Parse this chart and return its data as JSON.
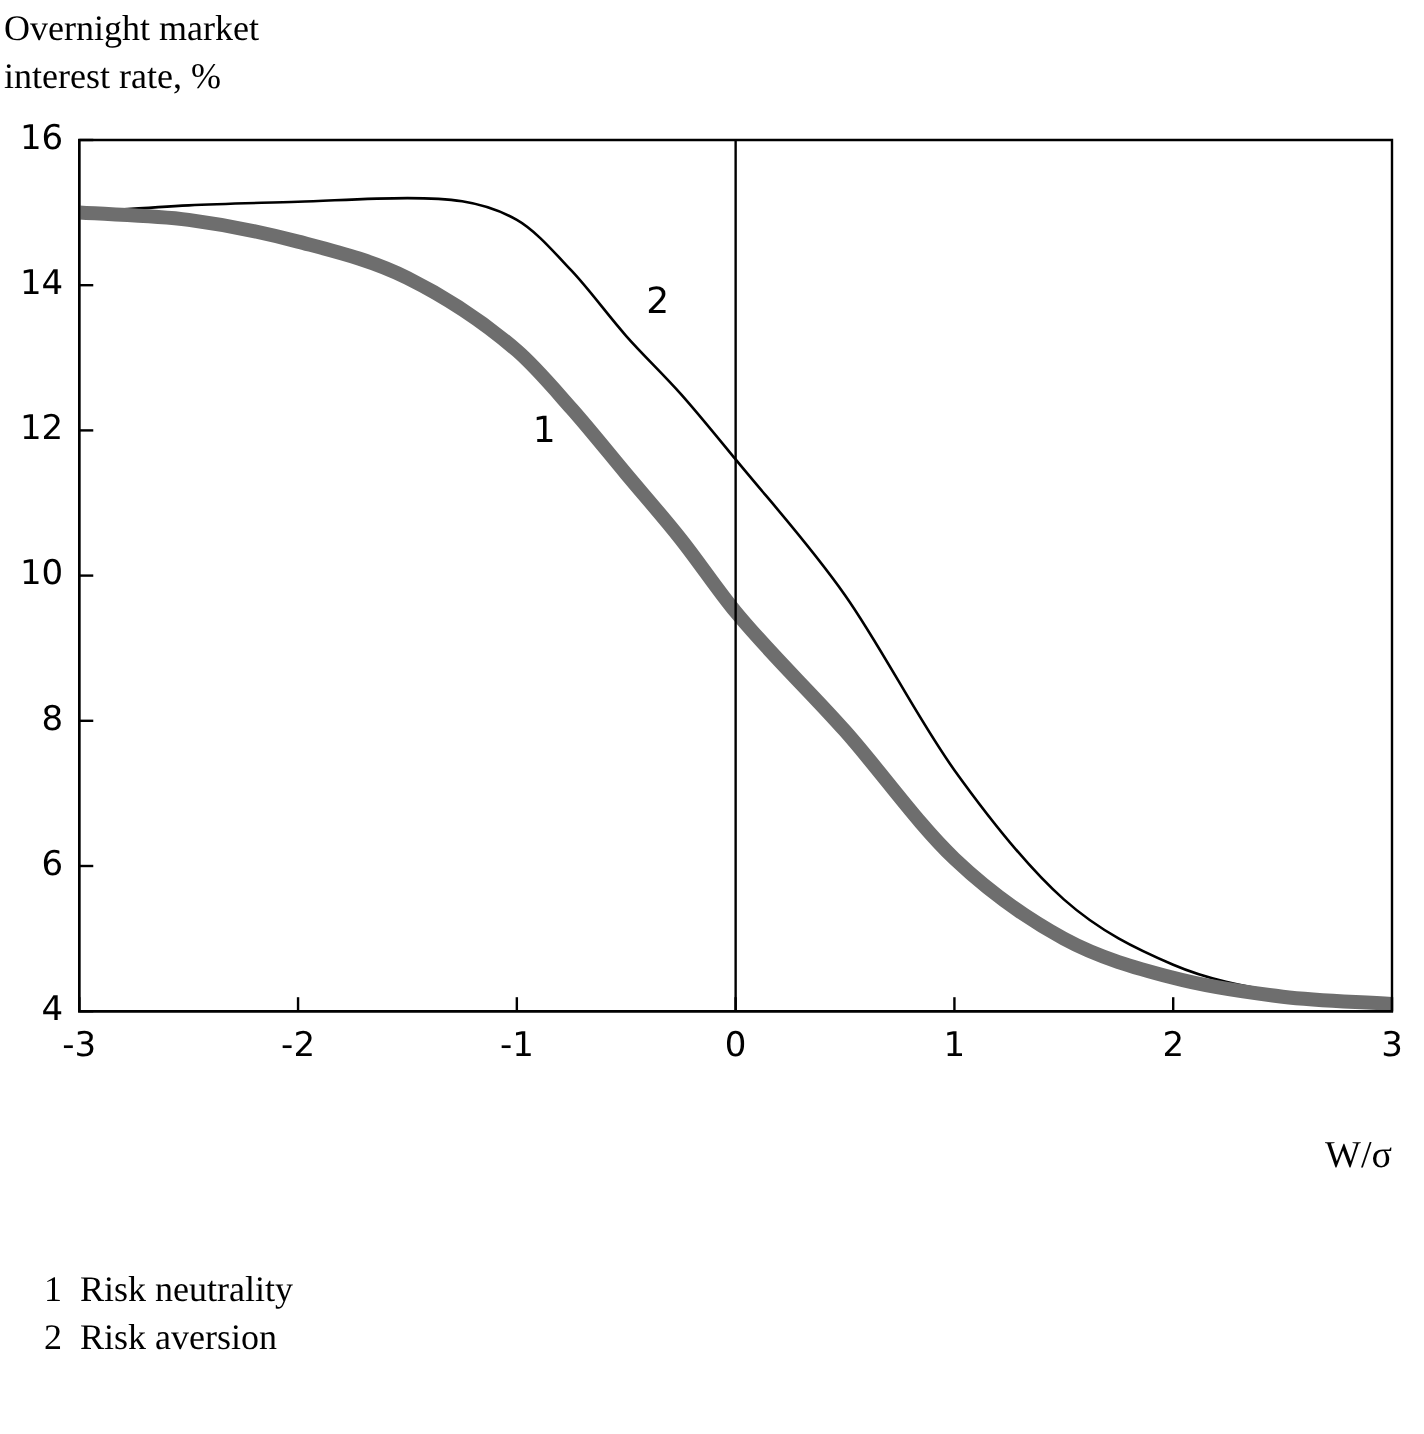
{
  "chart_data": {
    "type": "line",
    "ylabel": "Overnight market\ninterest rate, %",
    "xlabel": "W/σ",
    "x": [
      -3,
      -2.5,
      -2,
      -1.5,
      -1,
      -0.75,
      -0.5,
      -0.25,
      0,
      0.5,
      1,
      1.5,
      2,
      2.5,
      3
    ],
    "series": [
      {
        "name": "1",
        "color": "#6e6e6e",
        "values": [
          15.0,
          14.9,
          14.6,
          14.1,
          13.1,
          12.3,
          11.4,
          10.5,
          9.5,
          7.86,
          6.1,
          5.0,
          4.46,
          4.2,
          4.1
        ]
      },
      {
        "name": "2",
        "color": "#000000",
        "values": [
          15.0,
          15.1,
          15.15,
          15.2,
          14.9,
          14.2,
          13.3,
          12.5,
          11.6,
          9.73,
          7.32,
          5.54,
          4.64,
          4.25,
          4.1
        ]
      }
    ],
    "xlim": [
      -3,
      3
    ],
    "xticks": [
      -3,
      -2,
      -1,
      0,
      1,
      2,
      3
    ],
    "ylim": [
      4,
      16
    ],
    "yticks": [
      4,
      6,
      8,
      10,
      12,
      14,
      16
    ],
    "grid": false,
    "legend": false,
    "marker": "none",
    "line_style": "solid",
    "ref_lines": [
      {
        "axis": "x",
        "value": 0,
        "color": "#000000"
      }
    ],
    "annotations": [
      "1  Risk neutrality",
      "2  Risk aversion"
    ]
  }
}
